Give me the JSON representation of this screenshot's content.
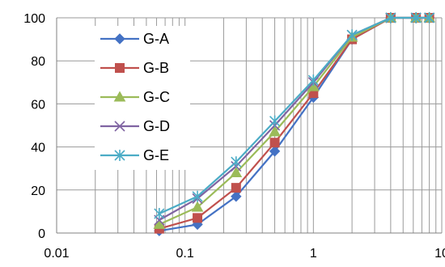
{
  "chart_data": {
    "type": "line",
    "x_scale": "log",
    "xlim": [
      0.01,
      10
    ],
    "ylim": [
      0,
      100
    ],
    "x_ticks": [
      0.01,
      0.1,
      1,
      10
    ],
    "x_tick_labels": [
      "0.01",
      "0.1",
      "1",
      "10"
    ],
    "y_ticks": [
      0,
      20,
      40,
      60,
      80,
      100
    ],
    "y_tick_labels": [
      "0",
      "20",
      "40",
      "60",
      "80",
      "100"
    ],
    "grid": "major and minor vertical gridlines; major horizontal gridlines",
    "legend_position": "upper-left inside plot",
    "x": [
      0.063,
      0.125,
      0.25,
      0.5,
      1,
      2,
      4,
      6.3,
      8
    ],
    "series": [
      {
        "name": "G-A",
        "color": "#4472C4",
        "marker": "diamond",
        "values": [
          1,
          4,
          17,
          38,
          63,
          90,
          100,
          100,
          100
        ]
      },
      {
        "name": "G-B",
        "color": "#C0504D",
        "marker": "square",
        "values": [
          2,
          7,
          21,
          42,
          65,
          90,
          100,
          100,
          100
        ]
      },
      {
        "name": "G-C",
        "color": "#9BBB59",
        "marker": "triangle",
        "values": [
          4,
          12,
          28,
          47,
          68,
          91,
          100,
          100,
          100
        ]
      },
      {
        "name": "G-D",
        "color": "#8064A2",
        "marker": "x",
        "values": [
          6,
          16,
          31,
          50,
          70,
          92,
          100,
          100,
          100
        ]
      },
      {
        "name": "G-E",
        "color": "#4BACC6",
        "marker": "asterisk",
        "values": [
          9,
          17,
          33,
          52,
          71,
          92,
          100,
          100,
          100
        ]
      }
    ]
  }
}
